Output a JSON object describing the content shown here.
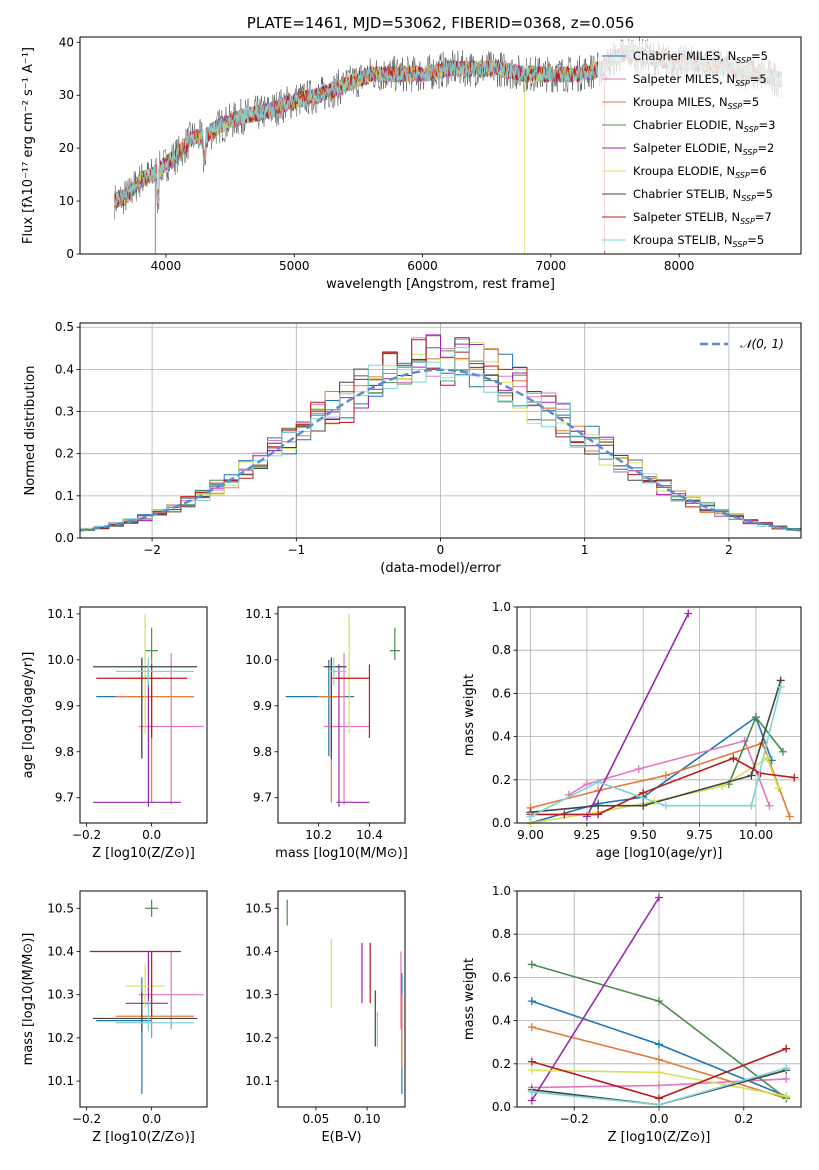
{
  "chart_data": [
    {
      "type": "line",
      "title": "PLATE=1461, MJD=53062, FIBERID=0368, z=0.056",
      "xlabel": "wavelength [Angstrom, rest frame]",
      "ylabel": "Flux [fλ10⁻¹⁷ erg cm⁻² s⁻¹ A⁻¹]",
      "xlim": [
        3330,
        8950
      ],
      "ylim": [
        0,
        41
      ],
      "xticks": [
        4000,
        5000,
        6000,
        7000,
        8000
      ],
      "yticks": [
        0,
        10,
        20,
        30,
        40
      ],
      "legend_position": "right",
      "series": [
        {
          "name": "Chabrier MILES, N_SSP=5",
          "color": "#1f77b4"
        },
        {
          "name": "Salpeter MILES, N_SSP=5",
          "color": "#e377c2"
        },
        {
          "name": "Kroupa MILES, N_SSP=5",
          "color": "#e07b39"
        },
        {
          "name": "Chabrier ELODIE, N_SSP=3",
          "color": "#4c8c4a"
        },
        {
          "name": "Salpeter ELODIE, N_SSP=2",
          "color": "#9c27b0"
        },
        {
          "name": "Kroupa ELODIE, N_SSP=6",
          "color": "#d4e157"
        },
        {
          "name": "Chabrier STELIB, N_SSP=5",
          "color": "#444444"
        },
        {
          "name": "Salpeter STELIB, N_SSP=7",
          "color": "#b71c1c"
        },
        {
          "name": "Kroupa STELIB, N_SSP=5",
          "color": "#7fd3d3"
        }
      ],
      "continuum": {
        "x": [
          3600,
          3700,
          3800,
          3900,
          4000,
          4100,
          4200,
          4300,
          4400,
          4500,
          4600,
          4800,
          5000,
          5200,
          5400,
          5600,
          5800,
          6000,
          6200,
          6400,
          6600,
          6800,
          7000,
          7200,
          7400,
          7500,
          7600,
          7800,
          8000,
          8200,
          8400,
          8600,
          8800
        ],
        "y": [
          10,
          11,
          14,
          15,
          17,
          19,
          22,
          22,
          24,
          25,
          26,
          27,
          29,
          30,
          32,
          34,
          34,
          34,
          35,
          35,
          35,
          34,
          34,
          34,
          35,
          37,
          38,
          37,
          36,
          36,
          35,
          34,
          33
        ]
      },
      "drops": [
        {
          "series": "Chabrier STELIB, N_SSP=5",
          "x": 3915
        },
        {
          "series": "Kroupa ELODIE, N_SSP=6",
          "x": 6795
        },
        {
          "series": "Salpeter STELIB, N_SSP=7",
          "x": 7420
        }
      ]
    },
    {
      "type": "bar",
      "xlabel": "(data-model)/error",
      "ylabel": "Normed distribution",
      "xlim": [
        -2.5,
        2.5
      ],
      "ylim": [
        0,
        0.51
      ],
      "xticks": [
        "−2",
        "−1",
        "0",
        "1",
        "2"
      ],
      "yticks": [
        0.0,
        0.1,
        0.2,
        0.3,
        0.4,
        0.5
      ],
      "bins": {
        "start": -2.6,
        "width": 0.1,
        "count": 52
      },
      "reference": {
        "label": "𝒩(0, 1)",
        "mean": 0,
        "sd": 1,
        "color": "#5b8ad6"
      },
      "legend_position": "top-right",
      "grid": true
    },
    {
      "type": "scatter",
      "xlabel": "Z [log10(Z/Z⊙)]",
      "ylabel": "age  [log10(age/yr)]",
      "xlim": [
        -0.22,
        0.17
      ],
      "ylim": [
        9.645,
        10.115
      ],
      "xticks": [
        -0.2,
        0.0
      ],
      "yticks": [
        9.7,
        9.8,
        9.9,
        10.0,
        10.1
      ],
      "points": [
        {
          "series": "Chabrier MILES, N_SSP=5",
          "x": -0.03,
          "xerr": [
            0.14,
            0.03
          ],
          "y": 9.92,
          "yerr": [
            0.13,
            0.08
          ]
        },
        {
          "series": "Salpeter MILES, N_SSP=5",
          "x": 0.06,
          "xerr": [
            0.1,
            0.1
          ],
          "y": 9.855,
          "yerr": [
            0.17,
            0.16
          ]
        },
        {
          "series": "Kroupa MILES, N_SSP=5",
          "x": 0.0,
          "xerr": [
            0.11,
            0.13
          ],
          "y": 9.92,
          "yerr": [
            0.23,
            0.08
          ]
        },
        {
          "series": "Chabrier ELODIE, N_SSP=3",
          "x": 0.0,
          "xerr": [
            0.02,
            0.02
          ],
          "y": 10.02,
          "yerr": [
            0.02,
            0.05
          ]
        },
        {
          "series": "Salpeter ELODIE, N_SSP=2",
          "x": -0.01,
          "xerr": [
            0.17,
            0.1
          ],
          "y": 9.69,
          "yerr": [
            0.01,
            0.3
          ]
        },
        {
          "series": "Kroupa ELODIE, N_SSP=6",
          "x": -0.02,
          "xerr": [
            0.06,
            0.06
          ],
          "y": 9.96,
          "yerr": [
            0.12,
            0.14
          ]
        },
        {
          "series": "Chabrier STELIB, N_SSP=5",
          "x": -0.03,
          "xerr": [
            0.15,
            0.17
          ],
          "y": 9.985,
          "yerr": [
            0.2,
            0.02
          ]
        },
        {
          "series": "Salpeter STELIB, N_SSP=7",
          "x": 0.0,
          "xerr": [
            0.17,
            0.11
          ],
          "y": 9.96,
          "yerr": [
            0.13,
            0.03
          ]
        },
        {
          "series": "Kroupa STELIB, N_SSP=5",
          "x": -0.01,
          "xerr": [
            0.1,
            0.14
          ],
          "y": 9.975,
          "yerr": [
            0.03,
            0.03
          ]
        }
      ]
    },
    {
      "type": "scatter",
      "xlabel": "mass [log10(M/M⊙)]",
      "xlim": [
        10.04,
        10.54
      ],
      "ylim": [
        9.645,
        10.115
      ],
      "xticks": [
        10.2,
        10.4
      ],
      "yticks": [
        9.7,
        9.8,
        9.9,
        10.0,
        10.1
      ],
      "points": [
        {
          "series": "Chabrier MILES, N_SSP=5",
          "x": 10.24,
          "xerr": [
            0.17,
            0.1
          ],
          "y": 9.92,
          "yerr": [
            0.13,
            0.08
          ]
        },
        {
          "series": "Salpeter MILES, N_SSP=5",
          "x": 10.3,
          "xerr": [
            0.08,
            0.1
          ],
          "y": 9.855,
          "yerr": [
            0.17,
            0.16
          ]
        },
        {
          "series": "Kroupa MILES, N_SSP=5",
          "x": 10.25,
          "xerr": [
            0.05,
            0.05
          ],
          "y": 9.92,
          "yerr": [
            0.23,
            0.08
          ]
        },
        {
          "series": "Chabrier ELODIE, N_SSP=3",
          "x": 10.5,
          "xerr": [
            0.02,
            0.02
          ],
          "y": 10.02,
          "yerr": [
            0.02,
            0.05
          ]
        },
        {
          "series": "Salpeter ELODIE, N_SSP=2",
          "x": 10.28,
          "xerr": [
            0.01,
            0.12
          ],
          "y": 9.69,
          "yerr": [
            0.01,
            0.3
          ]
        },
        {
          "series": "Kroupa ELODIE, N_SSP=6",
          "x": 10.32,
          "xerr": [
            0.05,
            0.05
          ],
          "y": 9.96,
          "yerr": [
            0.12,
            0.14
          ]
        },
        {
          "series": "Chabrier STELIB, N_SSP=5",
          "x": 10.25,
          "xerr": [
            0.03,
            0.06
          ],
          "y": 9.985,
          "yerr": [
            0.2,
            0.02
          ]
        },
        {
          "series": "Salpeter STELIB, N_SSP=7",
          "x": 10.4,
          "xerr": [
            0.15,
            0.0
          ],
          "y": 9.96,
          "yerr": [
            0.13,
            0.03
          ]
        },
        {
          "series": "Kroupa STELIB, N_SSP=5",
          "x": 10.26,
          "xerr": [
            0.02,
            0.05
          ],
          "y": 9.975,
          "yerr": [
            0.03,
            0.03
          ]
        }
      ]
    },
    {
      "type": "line",
      "xlabel": "age  [log10(age/yr)]",
      "ylabel": "mass weight",
      "xlim": [
        8.94,
        10.2
      ],
      "ylim": [
        0,
        1.0
      ],
      "xticks": [
        9.0,
        9.25,
        9.5,
        9.75,
        10.0
      ],
      "yticks": [
        0.0,
        0.2,
        0.4,
        0.6,
        0.8,
        1.0
      ],
      "grid": true,
      "series": [
        {
          "name": "Chabrier MILES, N_SSP=5",
          "x": [
            9.0,
            9.3,
            9.5,
            10.0,
            10.07
          ],
          "y": [
            0.0,
            0.09,
            0.12,
            0.49,
            0.29
          ]
        },
        {
          "name": "Salpeter MILES, N_SSP=5",
          "x": [
            9.17,
            9.25,
            9.48,
            9.95,
            10.06
          ],
          "y": [
            0.13,
            0.18,
            0.25,
            0.38,
            0.08
          ]
        },
        {
          "name": "Kroupa MILES, N_SSP=5",
          "x": [
            9.0,
            9.3,
            9.6,
            10.03,
            10.15
          ],
          "y": [
            0.07,
            0.15,
            0.22,
            0.37,
            0.03
          ]
        },
        {
          "name": "Chabrier ELODIE, N_SSP=3",
          "x": [
            9.88,
            10.0,
            10.12
          ],
          "y": [
            0.18,
            0.49,
            0.33
          ]
        },
        {
          "name": "Salpeter ELODIE, N_SSP=2",
          "x": [
            9.25,
            9.7
          ],
          "y": [
            0.03,
            0.97
          ]
        },
        {
          "name": "Kroupa ELODIE, N_SSP=6",
          "x": [
            9.0,
            9.3,
            9.55,
            9.85,
            10.05,
            10.1
          ],
          "y": [
            0.0,
            0.05,
            0.1,
            0.17,
            0.3,
            0.16
          ]
        },
        {
          "name": "Chabrier STELIB, N_SSP=5",
          "x": [
            9.0,
            9.3,
            9.5,
            9.98,
            10.11
          ],
          "y": [
            0.05,
            0.08,
            0.08,
            0.22,
            0.66
          ]
        },
        {
          "name": "Salpeter STELIB, N_SSP=7",
          "x": [
            9.0,
            9.15,
            9.3,
            9.5,
            9.9,
            10.02,
            10.17
          ],
          "y": [
            0.04,
            0.04,
            0.04,
            0.14,
            0.3,
            0.23,
            0.21
          ]
        },
        {
          "name": "Kroupa STELIB, N_SSP=5",
          "x": [
            9.0,
            9.3,
            9.6,
            9.98,
            10.11
          ],
          "y": [
            0.03,
            0.19,
            0.08,
            0.08,
            0.63
          ]
        }
      ]
    },
    {
      "type": "scatter",
      "xlabel": "Z [log10(Z/Z⊙)]",
      "ylabel": "mass [log10(M/M⊙)]",
      "xlim": [
        -0.22,
        0.17
      ],
      "ylim": [
        10.04,
        10.54
      ],
      "xticks": [
        -0.2,
        0.0
      ],
      "yticks": [
        10.1,
        10.2,
        10.3,
        10.4,
        10.5
      ],
      "points": [
        {
          "series": "Chabrier MILES, N_SSP=5",
          "x": -0.03,
          "xerr": [
            0.14,
            0.03
          ],
          "y": 10.24,
          "yerr": [
            0.17,
            0.1
          ]
        },
        {
          "series": "Salpeter MILES, N_SSP=5",
          "x": 0.06,
          "xerr": [
            0.1,
            0.1
          ],
          "y": 10.3,
          "yerr": [
            0.08,
            0.1
          ]
        },
        {
          "series": "Kroupa MILES, N_SSP=5",
          "x": 0.0,
          "xerr": [
            0.11,
            0.13
          ],
          "y": 10.25,
          "yerr": [
            0.05,
            0.05
          ]
        },
        {
          "series": "Chabrier ELODIE, N_SSP=3",
          "x": 0.0,
          "xerr": [
            0.02,
            0.02
          ],
          "y": 10.5,
          "yerr": [
            0.02,
            0.02
          ]
        },
        {
          "series": "Salpeter ELODIE, N_SSP=2",
          "x": -0.01,
          "xerr": [
            0.07,
            0.06
          ],
          "y": 10.28,
          "yerr": [
            0.01,
            0.12
          ]
        },
        {
          "series": "Kroupa ELODIE, N_SSP=6",
          "x": -0.02,
          "xerr": [
            0.06,
            0.06
          ],
          "y": 10.32,
          "yerr": [
            0.05,
            0.05
          ]
        },
        {
          "series": "Chabrier STELIB, N_SSP=5",
          "x": -0.03,
          "xerr": [
            0.15,
            0.17
          ],
          "y": 10.245,
          "yerr": [
            0.03,
            0.06
          ]
        },
        {
          "series": "Salpeter STELIB, N_SSP=7",
          "x": 0.0,
          "xerr": [
            0.19,
            0.09
          ],
          "y": 10.4,
          "yerr": [
            0.15,
            0.0
          ]
        },
        {
          "series": "Kroupa STELIB, N_SSP=5",
          "x": -0.01,
          "xerr": [
            0.1,
            0.14
          ],
          "y": 10.235,
          "yerr": [
            0.02,
            0.05
          ]
        }
      ]
    },
    {
      "type": "scatter",
      "xlabel": "E(B-V)",
      "xlim": [
        0.013,
        0.137
      ],
      "ylim": [
        10.04,
        10.54
      ],
      "xticks": [
        0.05,
        0.1
      ],
      "yticks": [
        10.1,
        10.2,
        10.3,
        10.4,
        10.5
      ],
      "points": [
        {
          "series": "Chabrier MILES, N_SSP=5",
          "x": 0.134,
          "y": 10.25,
          "yerr": [
            0.18,
            0.1
          ]
        },
        {
          "series": "Salpeter MILES, N_SSP=5",
          "x": 0.133,
          "y": 10.3,
          "yerr": [
            0.08,
            0.1
          ]
        },
        {
          "series": "Kroupa MILES, N_SSP=5",
          "x": 0.134,
          "y": 10.25,
          "yerr": [
            0.12,
            0.05
          ]
        },
        {
          "series": "Chabrier ELODIE, N_SSP=3",
          "x": 0.022,
          "y": 10.49,
          "yerr": [
            0.03,
            0.03
          ]
        },
        {
          "series": "Salpeter ELODIE, N_SSP=2",
          "x": 0.095,
          "y": 10.35,
          "yerr": [
            0.07,
            0.07
          ]
        },
        {
          "series": "Kroupa ELODIE, N_SSP=6",
          "x": 0.065,
          "y": 10.35,
          "yerr": [
            0.08,
            0.08
          ]
        },
        {
          "series": "Chabrier STELIB, N_SSP=5",
          "x": 0.108,
          "y": 10.25,
          "yerr": [
            0.07,
            0.06
          ]
        },
        {
          "series": "Salpeter STELIB, N_SSP=7",
          "x": 0.103,
          "y": 10.35,
          "yerr": [
            0.07,
            0.07
          ]
        },
        {
          "series": "Kroupa STELIB, N_SSP=5",
          "x": 0.11,
          "y": 10.22,
          "yerr": [
            0.04,
            0.04
          ]
        }
      ]
    },
    {
      "type": "line",
      "xlabel": "Z [log10(Z/Z⊙)]",
      "ylabel": "mass weight",
      "xlim": [
        -0.335,
        0.335
      ],
      "ylim": [
        0,
        1.0
      ],
      "xticks": [
        -0.2,
        0.0,
        0.2
      ],
      "yticks": [
        0.0,
        0.2,
        0.4,
        0.6,
        0.8,
        1.0
      ],
      "grid": true,
      "series": [
        {
          "name": "Chabrier MILES, N_SSP=5",
          "x": [
            -0.3,
            0.0,
            0.3
          ],
          "y": [
            0.49,
            0.29,
            0.05
          ]
        },
        {
          "name": "Salpeter MILES, N_SSP=5",
          "x": [
            -0.3,
            0.0,
            0.3
          ],
          "y": [
            0.09,
            0.1,
            0.13
          ]
        },
        {
          "name": "Kroupa MILES, N_SSP=5",
          "x": [
            -0.3,
            0.0,
            0.3
          ],
          "y": [
            0.37,
            0.22,
            0.04
          ]
        },
        {
          "name": "Chabrier ELODIE, N_SSP=3",
          "x": [
            -0.3,
            0.0,
            0.3
          ],
          "y": [
            0.66,
            0.49,
            0.04
          ]
        },
        {
          "name": "Salpeter ELODIE, N_SSP=2",
          "x": [
            -0.3,
            0.0
          ],
          "y": [
            0.03,
            0.97
          ]
        },
        {
          "name": "Kroupa ELODIE, N_SSP=6",
          "x": [
            -0.3,
            0.0,
            0.3
          ],
          "y": [
            0.17,
            0.16,
            0.05
          ]
        },
        {
          "name": "Chabrier STELIB, N_SSP=5",
          "x": [
            -0.3,
            0.0,
            0.3
          ],
          "y": [
            0.08,
            0.01,
            0.17
          ]
        },
        {
          "name": "Salpeter STELIB, N_SSP=7",
          "x": [
            -0.3,
            0.0,
            0.3
          ],
          "y": [
            0.21,
            0.04,
            0.27
          ]
        },
        {
          "name": "Kroupa STELIB, N_SSP=5",
          "x": [
            -0.3,
            0.0,
            0.3
          ],
          "y": [
            0.07,
            0.01,
            0.18
          ]
        }
      ]
    }
  ]
}
